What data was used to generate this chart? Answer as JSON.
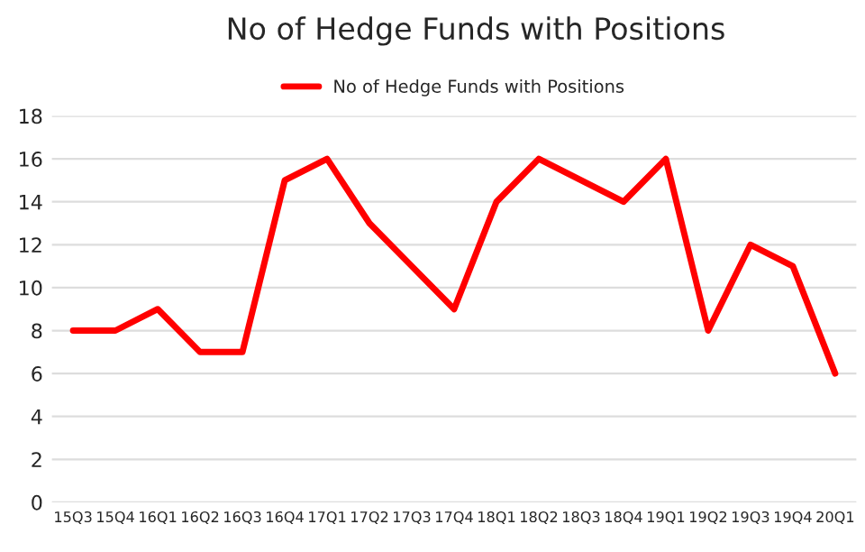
{
  "chart_data": {
    "type": "line",
    "title": "No of Hedge Funds with Positions",
    "categories": [
      "15Q3",
      "15Q4",
      "16Q1",
      "16Q2",
      "16Q3",
      "16Q4",
      "17Q1",
      "17Q2",
      "17Q3",
      "17Q4",
      "18Q1",
      "18Q2",
      "18Q3",
      "18Q4",
      "19Q1",
      "19Q2",
      "19Q3",
      "19Q4",
      "20Q1"
    ],
    "series": [
      {
        "name": "No of Hedge Funds with Positions",
        "color": "#ff0000",
        "values": [
          8,
          8,
          9,
          7,
          7,
          15,
          16,
          13,
          11,
          9,
          14,
          16,
          15,
          14,
          16,
          8,
          12,
          11,
          6
        ]
      }
    ],
    "ylim": [
      0,
      18
    ],
    "yticks": [
      0,
      2,
      4,
      6,
      8,
      10,
      12,
      14,
      16,
      18
    ],
    "grid": "y",
    "legend": "top",
    "marker": "none",
    "line_style": "solid"
  }
}
